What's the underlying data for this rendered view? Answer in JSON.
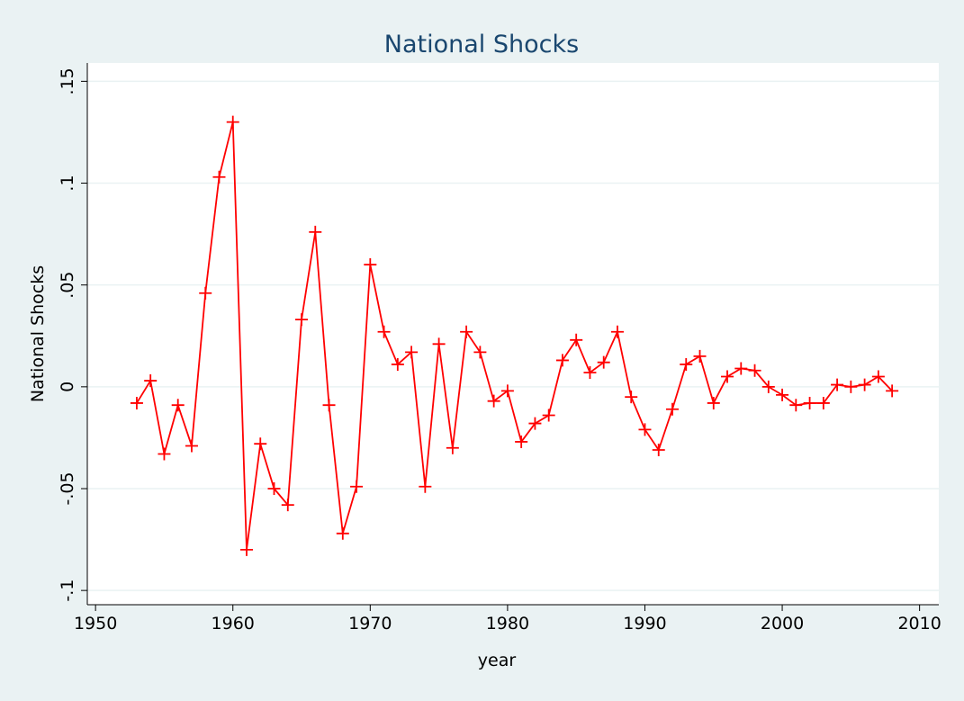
{
  "chart_data": {
    "type": "line",
    "title": "National Shocks",
    "x_label": "year",
    "y_label": "National Shocks",
    "x": [
      1953,
      1954,
      1955,
      1956,
      1957,
      1958,
      1959,
      1960,
      1961,
      1962,
      1963,
      1964,
      1965,
      1966,
      1967,
      1968,
      1969,
      1970,
      1971,
      1972,
      1973,
      1974,
      1975,
      1976,
      1977,
      1978,
      1979,
      1980,
      1981,
      1982,
      1983,
      1984,
      1985,
      1986,
      1987,
      1988,
      1989,
      1990,
      1991,
      1992,
      1993,
      1994,
      1995,
      1996,
      1997,
      1998,
      1999,
      2000,
      2001,
      2002,
      2003,
      2004,
      2005,
      2006,
      2007,
      2008
    ],
    "series": [
      {
        "name": "National Shocks",
        "color": "#ff0000",
        "values": [
          -0.008,
          0.003,
          -0.033,
          -0.009,
          -0.029,
          0.046,
          0.103,
          0.13,
          -0.08,
          -0.028,
          -0.05,
          -0.058,
          0.033,
          0.076,
          -0.009,
          -0.072,
          -0.049,
          0.06,
          0.027,
          0.011,
          0.017,
          -0.049,
          0.021,
          -0.03,
          0.027,
          0.017,
          -0.007,
          -0.002,
          -0.027,
          -0.018,
          -0.014,
          0.013,
          0.023,
          0.007,
          0.012,
          0.027,
          -0.005,
          -0.021,
          -0.031,
          -0.011,
          0.011,
          0.015,
          -0.008,
          0.005,
          0.009,
          0.008,
          0.0,
          -0.004,
          -0.009,
          -0.008,
          -0.008,
          0.001,
          0.0,
          0.001,
          0.005,
          -0.002
        ]
      }
    ],
    "xlim": [
      1949.4,
      2011.4
    ],
    "xticks": [
      1950,
      1960,
      1970,
      1980,
      1990,
      2000,
      2010
    ],
    "ylim": [
      -0.107,
      0.159
    ],
    "yticks": [
      {
        "value": -0.1,
        "label": "-.1"
      },
      {
        "value": -0.05,
        "label": "-.05"
      },
      0,
      {
        "value": 0.05,
        "label": ".05"
      },
      {
        "value": 0.1,
        "label": ".1"
      },
      {
        "value": 0.15,
        "label": ".15"
      }
    ],
    "grid": true
  }
}
